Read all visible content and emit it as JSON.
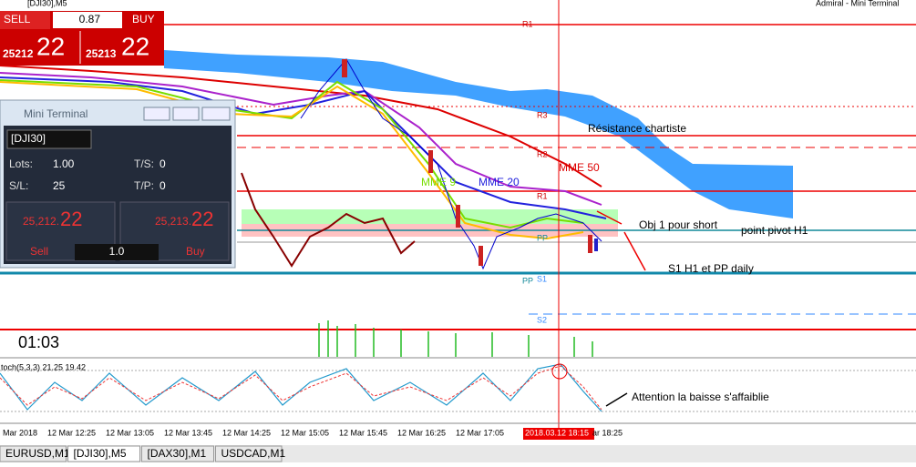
{
  "window": {
    "title": "[DJI30],M5",
    "app": "Admiral - Mini Terminal"
  },
  "trade_widget": {
    "sell": "SELL",
    "volume": "0.87",
    "buy": "BUY",
    "bid_big": "25212",
    "bid_small": "22",
    "ask_big": "25213",
    "ask_small": "22"
  },
  "mini_terminal": {
    "title": "Mini Terminal",
    "symbol": "[DJI30]",
    "lots_label": "Lots:",
    "lots": "1.00",
    "ts_label": "T/S:",
    "ts": "0",
    "sl_label": "S/L:",
    "sl": "25",
    "tp_label": "T/P:",
    "tp": "0",
    "sell_price_big": "25,212.",
    "sell_price_small": "22",
    "buy_price_big": "25,213.",
    "buy_price_small": "22",
    "sell": "Sell",
    "volume": "1.0",
    "buy": "Buy"
  },
  "levels": {
    "r1": "R1",
    "r3": "R3",
    "r2": "R2",
    "r1b": "R1",
    "pp": "PP",
    "pp2": "PP",
    "s1": "S1",
    "s2": "S2"
  },
  "annotations": {
    "resistance": "Résistance chartiste",
    "mme50": "MME 50",
    "mme9": "MME 9",
    "mme20": "MME 20",
    "obj": "Obj 1 pour short",
    "pivot": "point pivot H1",
    "s1daily": "S1 H1 et PP daily",
    "timer": "01:03",
    "stoch": "toch(5,3,3) 21.25 19.42",
    "attention": "Attention la baisse s'affaiblie"
  },
  "x_axis": [
    "Mar 2018",
    "12 Mar 12:25",
    "12 Mar 13:05",
    "12 Mar 13:45",
    "12 Mar 14:25",
    "12 Mar 15:05",
    "12 Mar 15:45",
    "12 Mar 16:25",
    "12 Mar 17:05",
    "2018.03.12 18:15",
    "ar 18:25"
  ],
  "tabs": [
    "EURUSD,M1",
    "[DJI30],M5",
    "[DAX30],M1",
    "USDCAD,M1"
  ]
}
